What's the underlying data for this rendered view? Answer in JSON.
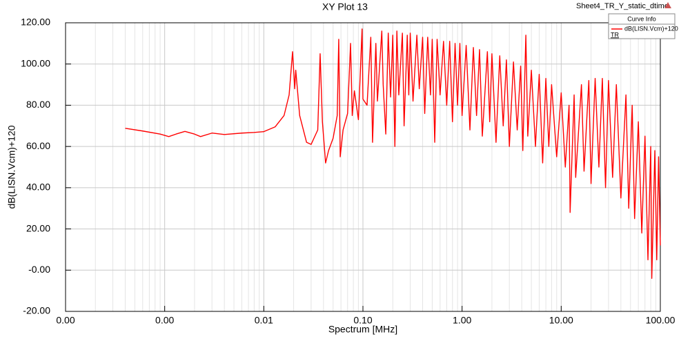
{
  "chart_data": {
    "type": "line",
    "title": "XY Plot 13",
    "subtitle": "Sheet4_TR_Y_static_dtime",
    "x_label": "Spectrum [MHz]",
    "y_label": "dB(LISN.Vcm)+120",
    "legend_title": "Curve Info",
    "legend_note": "TR",
    "legend": "top-right",
    "log_x": true,
    "grid": true,
    "xlim": [
      0.0001,
      100
    ],
    "xticks": [
      {
        "value": 0.0001,
        "label": "0.00"
      },
      {
        "value": 0.001,
        "label": "0.00"
      },
      0.01,
      {
        "value": 0.1,
        "label": "0.10"
      },
      {
        "value": 1,
        "label": "1.00"
      },
      {
        "value": 10,
        "label": "10.00"
      },
      {
        "value": 100,
        "label": "100.00"
      }
    ],
    "ylim": [
      -20,
      120
    ],
    "yticks": [
      {
        "value": -20,
        "label": "-20.00"
      },
      {
        "value": 0,
        "label": "-0.00"
      },
      {
        "value": 20,
        "label": "20.00"
      },
      {
        "value": 40,
        "label": "40.00"
      },
      {
        "value": 60,
        "label": "60.00"
      },
      {
        "value": 80,
        "label": "80.00"
      },
      {
        "value": 100,
        "label": "100.00"
      },
      {
        "value": 120,
        "label": "120.00"
      }
    ],
    "x": [
      0.0004,
      0.0006,
      0.0009,
      0.0011,
      0.0013,
      0.0016,
      0.002,
      0.0023,
      0.003,
      0.004,
      0.006,
      0.008,
      0.01,
      0.013,
      0.016,
      0.018,
      0.0195,
      0.0205,
      0.021,
      0.023,
      0.027,
      0.03,
      0.035,
      0.037,
      0.039,
      0.042,
      0.045,
      0.05,
      0.055,
      0.057,
      0.059,
      0.063,
      0.07,
      0.075,
      0.078,
      0.082,
      0.09,
      0.098,
      0.1,
      0.11,
      0.12,
      0.125,
      0.135,
      0.14,
      0.155,
      0.16,
      0.17,
      0.18,
      0.19,
      0.2,
      0.21,
      0.22,
      0.23,
      0.25,
      0.26,
      0.28,
      0.29,
      0.3,
      0.32,
      0.35,
      0.37,
      0.4,
      0.42,
      0.45,
      0.48,
      0.5,
      0.53,
      0.56,
      0.6,
      0.65,
      0.7,
      0.75,
      0.8,
      0.85,
      0.9,
      0.95,
      1.0,
      1.1,
      1.2,
      1.3,
      1.4,
      1.5,
      1.6,
      1.8,
      1.9,
      2.0,
      2.2,
      2.4,
      2.6,
      2.8,
      3.0,
      3.3,
      3.6,
      3.9,
      4.1,
      4.4,
      4.6,
      5.0,
      5.5,
      6.0,
      6.5,
      7.0,
      7.5,
      8.0,
      9.0,
      10,
      11,
      12,
      12.3,
      13.5,
      14,
      16,
      17,
      19,
      20,
      22,
      24,
      26,
      28,
      30,
      33,
      36,
      40,
      45,
      48,
      52,
      55,
      60,
      65,
      70,
      75,
      80,
      82,
      88,
      92,
      96,
      100
    ],
    "series": [
      {
        "name": "dB(LISN.Vcm)+120",
        "color": "#ff0000",
        "values": [
          68.8,
          67.5,
          66,
          64.8,
          66,
          67.3,
          66,
          64.8,
          66.5,
          65.8,
          66.5,
          66.8,
          67.2,
          69.5,
          75,
          85,
          106,
          88,
          97,
          75,
          62,
          61,
          68,
          105,
          72,
          52,
          58,
          64,
          75,
          112,
          55,
          68,
          76,
          110,
          75,
          87,
          73,
          117,
          83,
          80,
          113,
          62,
          110,
          82,
          116,
          90,
          66,
          115,
          84,
          114,
          60,
          116,
          85,
          115,
          70,
          114,
          85,
          115,
          82,
          114,
          88,
          113,
          76,
          113,
          85,
          112,
          62,
          112,
          85,
          111,
          80,
          111,
          72,
          110,
          80,
          110,
          75,
          109,
          68,
          108,
          75,
          107,
          65,
          106,
          72,
          105,
          62,
          104,
          70,
          102,
          60,
          101,
          68,
          99,
          58,
          114,
          65,
          97,
          60,
          95,
          52,
          93,
          60,
          90,
          55,
          86,
          50,
          80,
          28,
          85,
          45,
          90,
          48,
          92,
          42,
          93,
          50,
          93,
          40,
          92,
          45,
          90,
          35,
          85,
          30,
          80,
          25,
          72,
          18,
          65,
          5,
          60,
          -4,
          58,
          5,
          55,
          12
        ]
      }
    ]
  }
}
